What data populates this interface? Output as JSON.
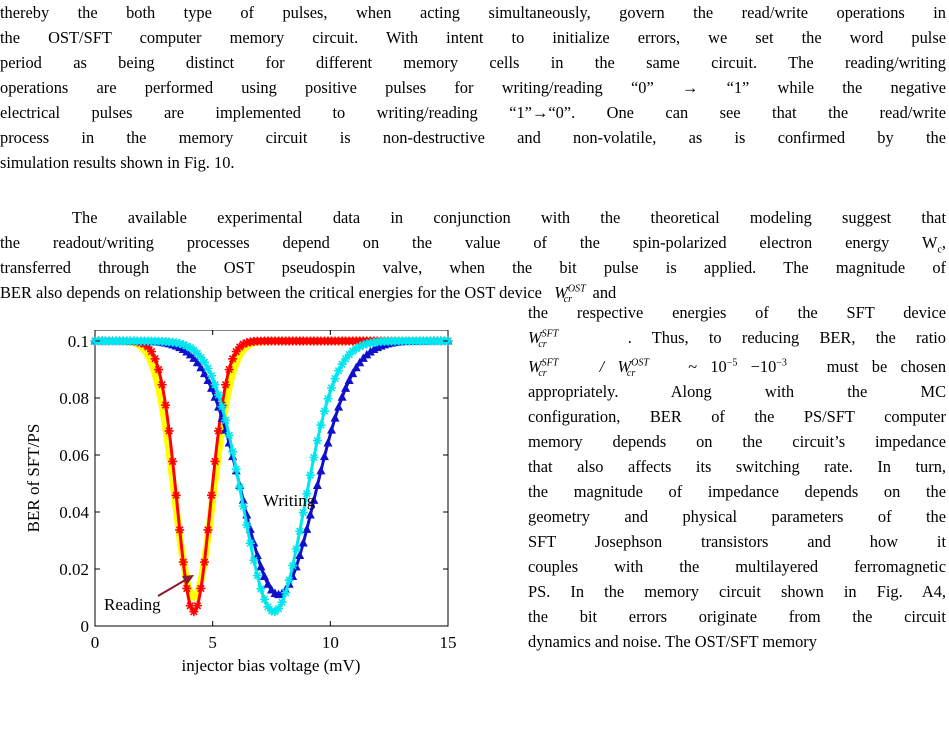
{
  "body": {
    "para1_lines": [
      "thereby the both type of pulses, when acting simultaneously, govern the read/write operations in",
      "the OST/SFT computer memory circuit. With intent to initialize errors, we set the word pulse",
      "period as being distinct for different memory cells in the same circuit. The reading/writing",
      "operations are performed using positive pulses for writing/reading “0” → “1” while the negative",
      "electrical pulses are implemented to writing/reading “1”→“0”. One can see that the read/write",
      "process in the memory circuit is non-destructive and non-volatile, as is confirmed by the",
      "simulation results shown in Fig. 10."
    ],
    "para2_lines": [
      "The available experimental data in conjunction with the theoretical modeling suggest that",
      "the readout/writing processes depend on the value of the spin-polarized electron energy W",
      "transferred through the OST pseudospin valve, when the bit pulse is applied. The magnitude of",
      "BER also depends on relationship between the critical energies for the OST device"
    ],
    "para2_line2_sub": "c",
    "para2_line2_end": ",",
    "para2_line4_end": "and",
    "right_col_lines": [
      "the respective energies of the SFT device",
      ". Thus, to reducing BER, the ratio",
      "must be chosen",
      "appropriately.   Along   with   the   MC",
      "configuration, BER of the PS/SFT computer",
      "memory depends on the circuit’s impedance",
      "that also affects its switching rate. In turn,",
      "the magnitude of impedance depends on the",
      "geometry and physical parameters of the",
      "SFT   Josephson   transistors   and   how   it",
      "couples with the multilayered ferromagnetic",
      "PS. In the memory circuit shown in Fig. A4,",
      "the bit errors originate from the circuit",
      "dynamics and noise. The OST/SFT memory"
    ],
    "math": {
      "W": "W",
      "cr": "cr",
      "OST": "OST",
      "SFT": "SFT",
      "ratio_tail": "~ 10",
      "exp1": "−5",
      "dash": " −10",
      "exp2": "−3"
    }
  },
  "chart_data": {
    "type": "line",
    "xlabel": "injector bias voltage (mV)",
    "ylabel": "BER of SFT/PS",
    "xlim": [
      0,
      15
    ],
    "ylim": [
      0,
      0.1
    ],
    "xticks": [
      "0",
      "5",
      "10",
      "15"
    ],
    "yticks": [
      "0",
      "0.02",
      "0.04",
      "0.06",
      "0.08",
      "0.1"
    ],
    "annotations": [
      {
        "text": "Writing",
        "color": "#1a1acc"
      },
      {
        "text": "Reading",
        "color": "#8b1a2b"
      }
    ],
    "series": [
      {
        "color": "#ffff00",
        "style": "solid",
        "center": 4.2,
        "min": 0.01,
        "width": 1.15
      },
      {
        "color": "#ff0000",
        "style": "star-markers",
        "center": 4.2,
        "min": 0.005,
        "width": 1.0
      },
      {
        "color": "#1010cc",
        "style": "triangle-markers",
        "center": 7.8,
        "min": 0.011,
        "width": 2.2
      },
      {
        "color": "#00e5ee",
        "style": "star-markers",
        "center": 7.6,
        "min": 0.005,
        "width": 1.85
      }
    ]
  }
}
